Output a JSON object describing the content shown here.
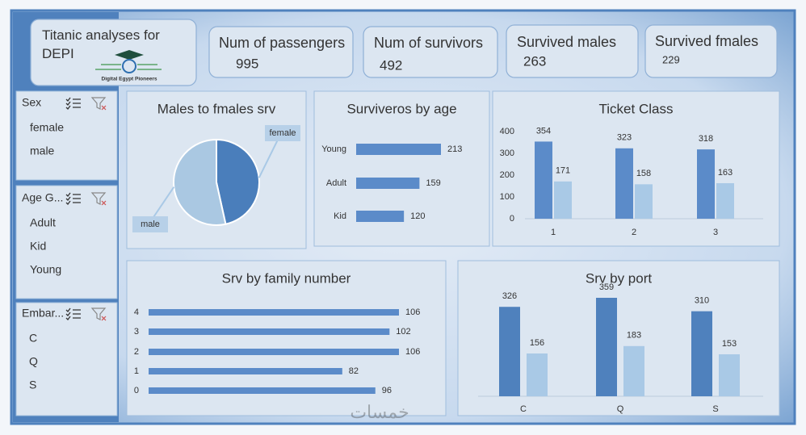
{
  "header": {
    "title": "Titanic analyses for DEPI",
    "logo_text": "Digital Egypt Pioneers"
  },
  "kpis": [
    {
      "label": "Num of passengers",
      "value": 995
    },
    {
      "label": "Num of survivors",
      "value": 492
    },
    {
      "label": "Survived males",
      "value": 263
    },
    {
      "label": "Survived fmales",
      "value": 229
    }
  ],
  "slicers": [
    {
      "title": "Sex",
      "items": [
        "female",
        "male"
      ]
    },
    {
      "title": "Age G...",
      "items": [
        "Adult",
        "Kid",
        "Young"
      ]
    },
    {
      "title": "Embar...",
      "items": [
        "C",
        "Q",
        "S"
      ]
    }
  ],
  "watermark": "خمسات",
  "chart_data": [
    {
      "type": "pie",
      "title": "Males to  fmales srv",
      "categories": [
        "female",
        "male"
      ],
      "values": [
        229,
        263
      ],
      "colors": [
        "#4a7ebb",
        "#aac8e2"
      ]
    },
    {
      "type": "hbar",
      "title": "Surviveros by age",
      "categories": [
        "Young",
        "Adult",
        "Kid"
      ],
      "values": [
        213,
        159,
        120
      ],
      "color": "#5b8bc9"
    },
    {
      "type": "bar",
      "title": "Ticket Class",
      "categories": [
        "1",
        "2",
        "3"
      ],
      "series": [
        {
          "color": "#5b8bc9",
          "values": [
            354,
            323,
            318
          ]
        },
        {
          "color": "#a9c9e6",
          "values": [
            171,
            158,
            163
          ]
        }
      ],
      "ylim": [
        0,
        400
      ],
      "yticks": [
        0,
        100,
        200,
        300,
        400
      ]
    },
    {
      "type": "hbar",
      "title": "Srv by family number",
      "categories": [
        "4",
        "3",
        "2",
        "1",
        "0"
      ],
      "values": [
        106,
        102,
        106,
        82,
        96
      ],
      "color": "#5b8bc9"
    },
    {
      "type": "bar",
      "title": "Srv by port",
      "categories": [
        "C",
        "Q",
        "S"
      ],
      "series": [
        {
          "color": "#4f81bd",
          "values": [
            326,
            359,
            310
          ]
        },
        {
          "color": "#a9c9e6",
          "values": [
            156,
            183,
            153
          ]
        }
      ]
    }
  ]
}
